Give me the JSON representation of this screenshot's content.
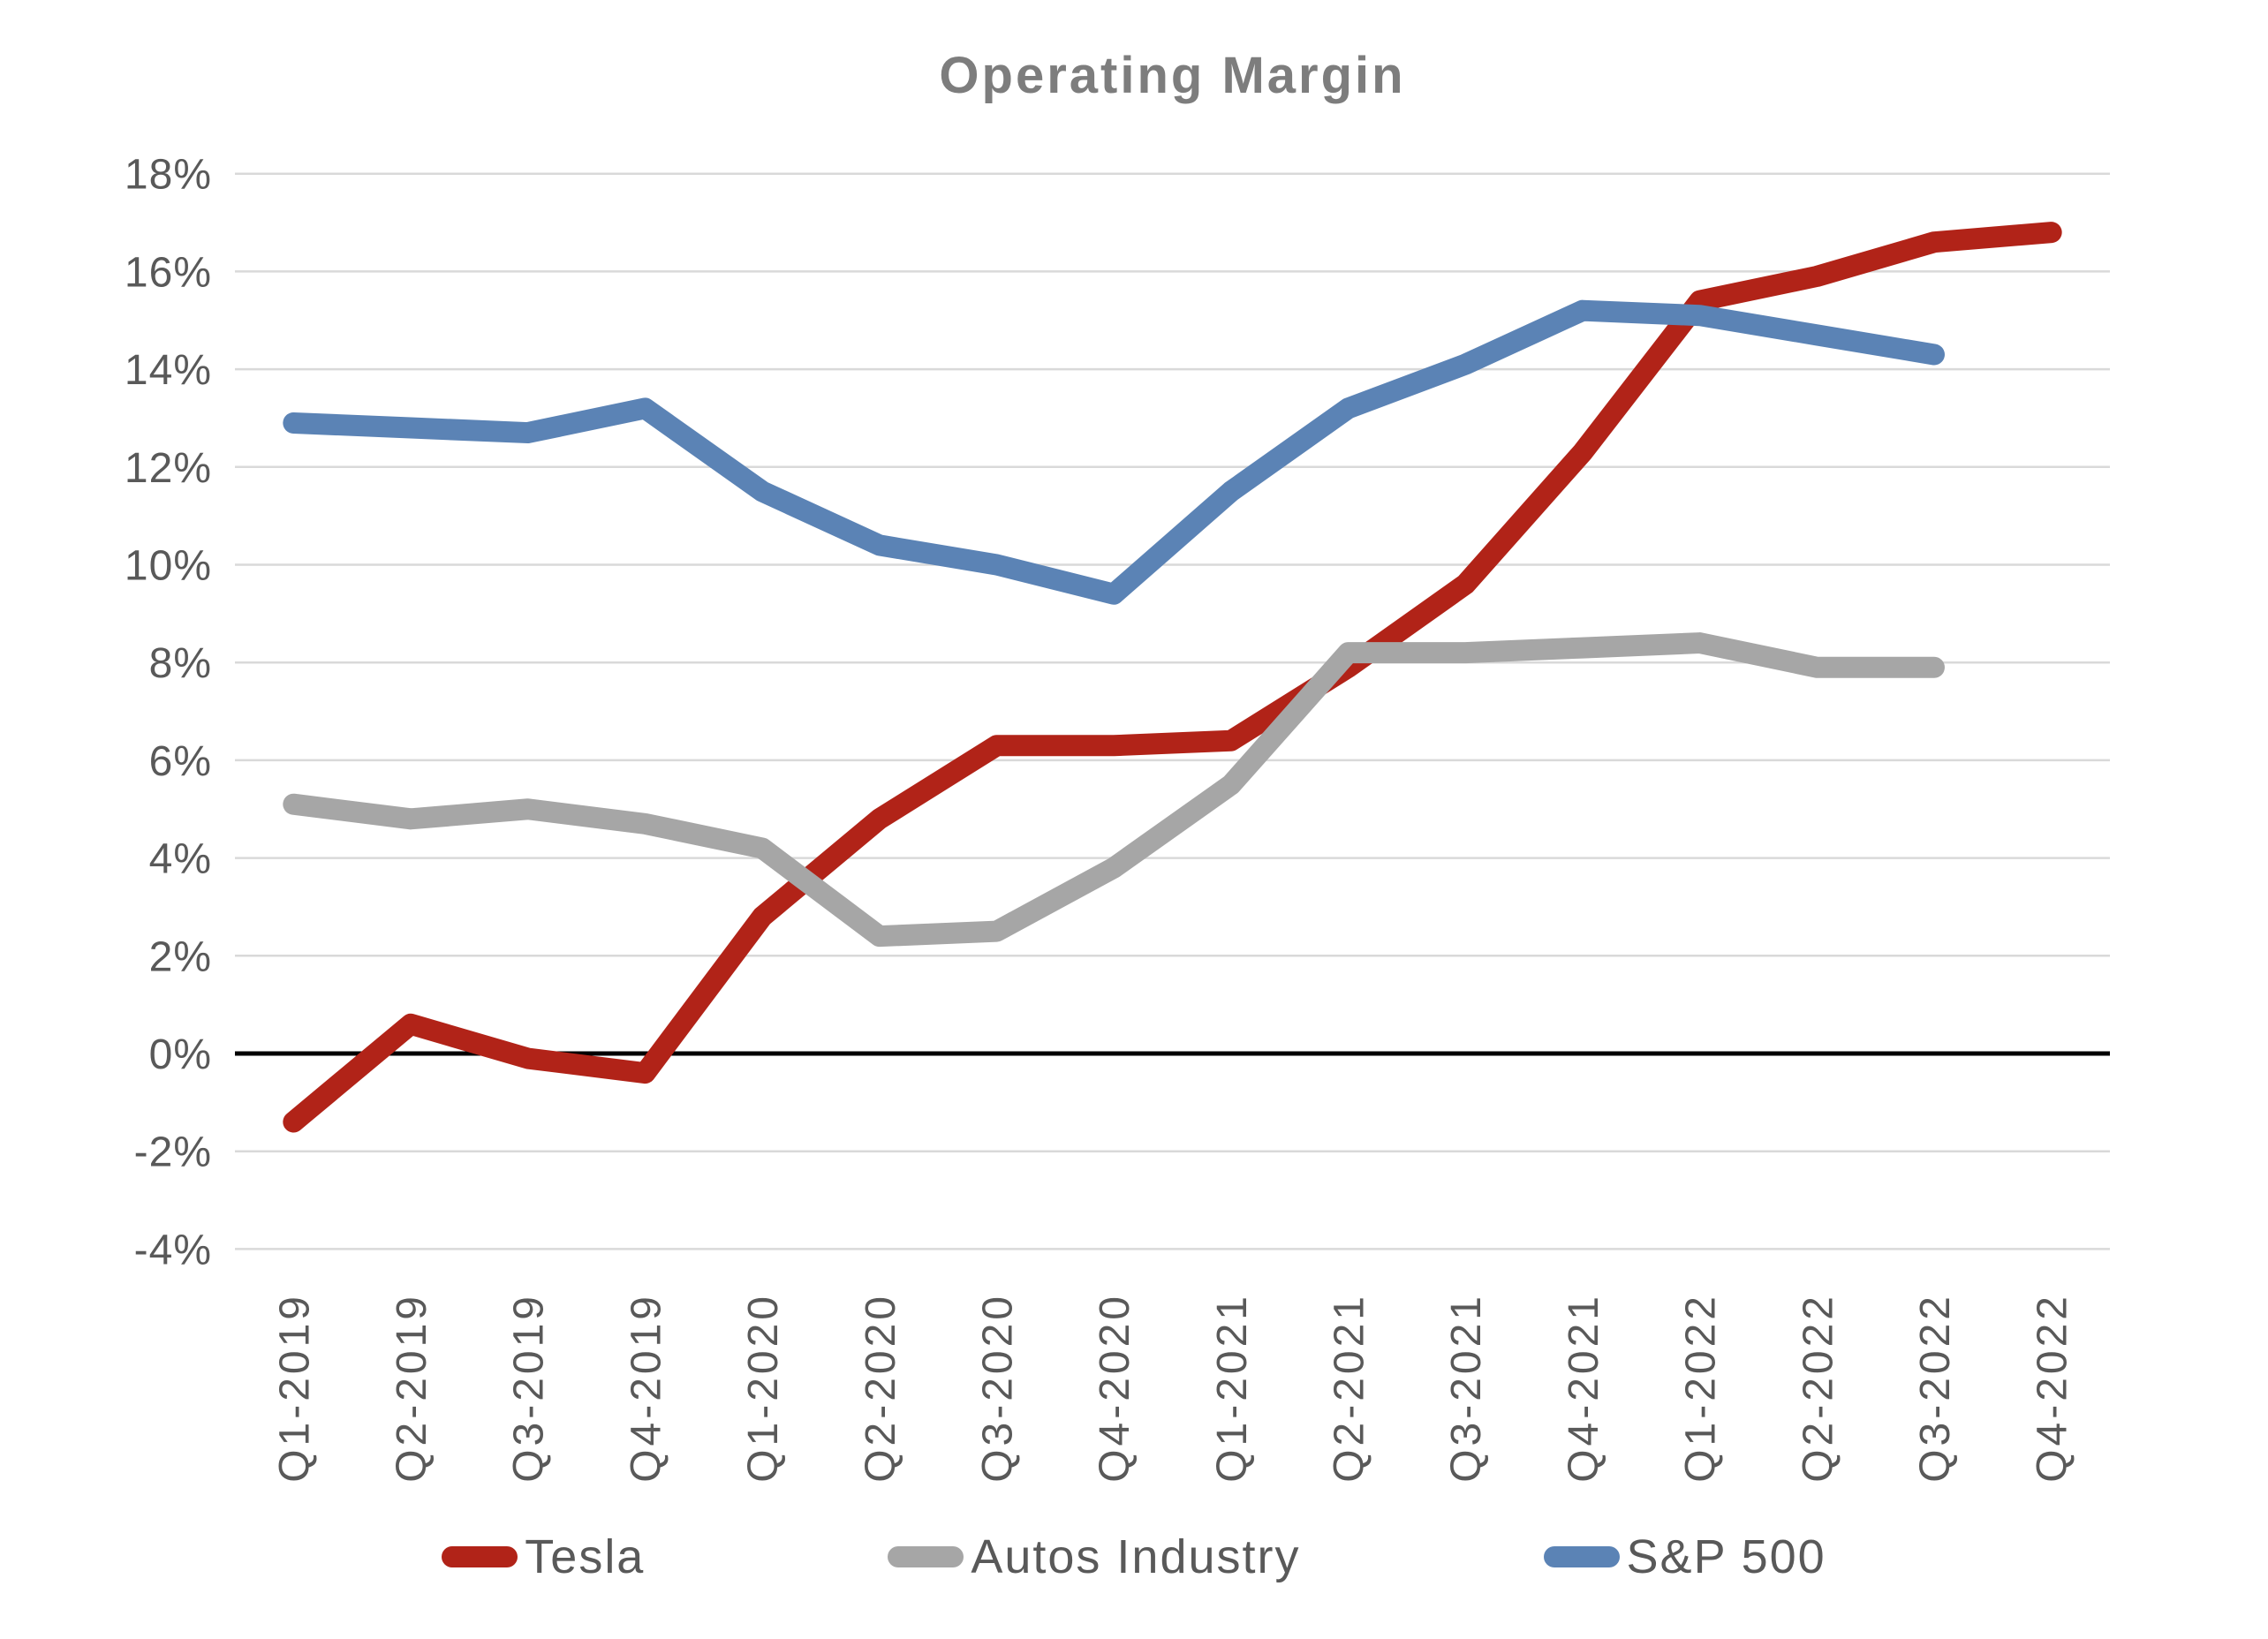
{
  "title": "Operating Margin",
  "chart_data": {
    "type": "line",
    "title": "Operating Margin",
    "categories": [
      "Q1-2019",
      "Q2-2019",
      "Q3-2019",
      "Q4-2019",
      "Q1-2020",
      "Q2-2020",
      "Q3-2020",
      "Q4-2020",
      "Q1-2021",
      "Q2-2021",
      "Q3-2021",
      "Q4-2021",
      "Q1-2022",
      "Q2-2022",
      "Q3-2022",
      "Q4-2022"
    ],
    "series": [
      {
        "name": "Tesla",
        "color": "#B12318",
        "values": [
          -1.4,
          0.6,
          -0.1,
          -0.4,
          2.8,
          4.8,
          6.3,
          6.3,
          6.4,
          7.9,
          9.6,
          12.3,
          15.4,
          15.9,
          16.6,
          16.8
        ]
      },
      {
        "name": "Autos Industry",
        "color": "#A6A6A6",
        "values": [
          5.1,
          4.8,
          5.0,
          4.7,
          4.2,
          2.4,
          2.5,
          3.8,
          5.5,
          8.2,
          8.2,
          8.3,
          8.4,
          7.9,
          7.9
        ]
      },
      {
        "name": "S&P 500",
        "color": "#5B83B5",
        "values": [
          12.9,
          12.8,
          12.7,
          13.2,
          11.5,
          10.4,
          10.0,
          9.4,
          11.5,
          13.2,
          14.1,
          15.2,
          15.1,
          14.7,
          14.3
        ]
      }
    ],
    "ylabel": "",
    "xlabel": "",
    "ylim": [
      -4,
      18
    ],
    "y_tick_labels": [
      "18%",
      "16%",
      "14%",
      "12%",
      "10%",
      "8%",
      "6%",
      "4%",
      "2%",
      "0%",
      "-2%",
      "-4%"
    ],
    "y_tick_values": [
      18,
      16,
      14,
      12,
      10,
      8,
      6,
      4,
      2,
      0,
      -2,
      -4
    ],
    "grid": "horizontal",
    "zero_line": true,
    "legend_position": "bottom"
  },
  "colors": {
    "gridline": "#D9D9D9",
    "zero_line": "#000000",
    "tick_text": "#595959",
    "title_text": "#7D7D7D"
  }
}
